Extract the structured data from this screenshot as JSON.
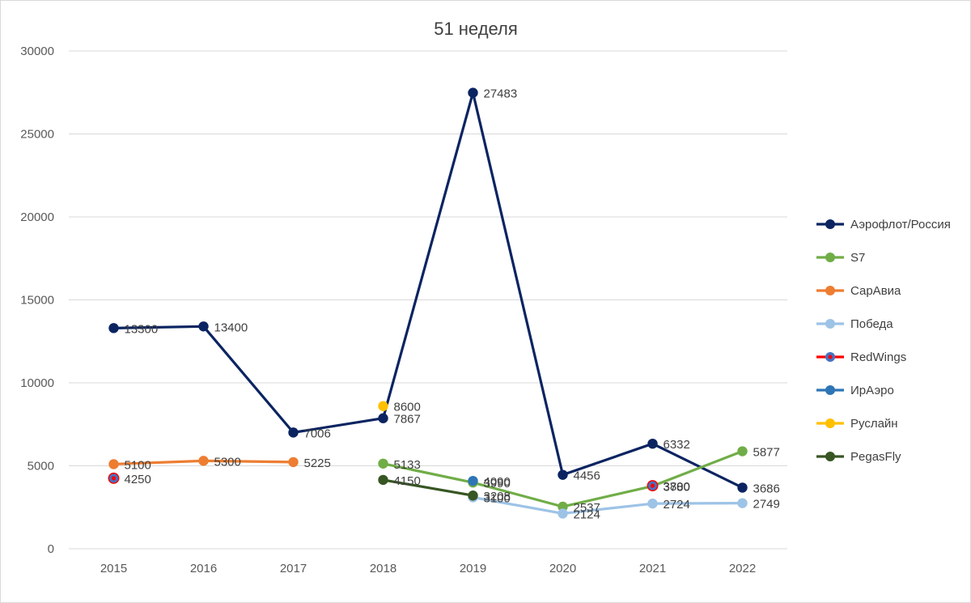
{
  "chart_data": {
    "type": "line",
    "title": "51 неделя",
    "xlabel": "",
    "ylabel": "",
    "categories": [
      "2015",
      "2016",
      "2017",
      "2018",
      "2019",
      "2020",
      "2021",
      "2022"
    ],
    "ylim": [
      0,
      30000
    ],
    "yticks": [
      0,
      5000,
      10000,
      15000,
      20000,
      25000,
      30000
    ],
    "grid": true,
    "legend_position": "right",
    "series": [
      {
        "name": "Аэрофлот/Россия",
        "color": "#0b2461",
        "values": [
          13300,
          13400,
          7006,
          7867,
          27483,
          4456,
          6332,
          3686
        ]
      },
      {
        "name": "S7",
        "color": "#70ad47",
        "values": [
          null,
          null,
          null,
          5133,
          3990,
          2537,
          3780,
          5877
        ]
      },
      {
        "name": "СарАвиа",
        "color": "#ed7d31",
        "values": [
          5100,
          5300,
          5225,
          null,
          null,
          null,
          null,
          null
        ]
      },
      {
        "name": "Победа",
        "color": "#9dc3e6",
        "values": [
          null,
          null,
          null,
          null,
          3100,
          2124,
          2724,
          2749
        ]
      },
      {
        "name": "RedWings",
        "color": "#ff0000",
        "marker_color": "#4472c4",
        "values": [
          4250,
          null,
          null,
          null,
          null,
          null,
          3800,
          null
        ]
      },
      {
        "name": "ИрАэро",
        "color": "#2e75b6",
        "values": [
          null,
          null,
          null,
          null,
          4090,
          null,
          null,
          null
        ]
      },
      {
        "name": "Руслайн",
        "color": "#ffc000",
        "values": [
          null,
          null,
          null,
          8600,
          null,
          null,
          null,
          null
        ]
      },
      {
        "name": "PegasFly",
        "color": "#375623",
        "values": [
          null,
          null,
          null,
          4150,
          3208,
          null,
          null,
          null
        ]
      }
    ]
  }
}
